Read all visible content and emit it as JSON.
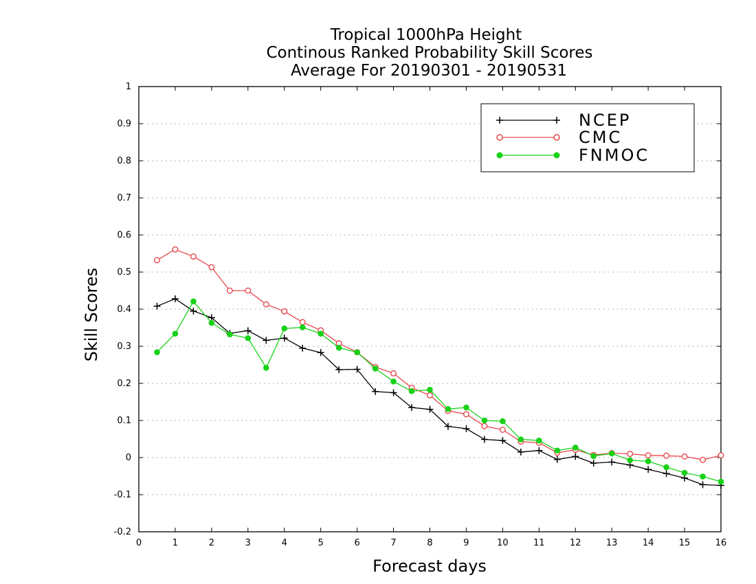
{
  "chart_data": {
    "type": "line",
    "title": [
      "Tropical 1000hPa Height",
      "Continous Ranked Probability Skill Scores",
      "Average For 20190301 - 20190531"
    ],
    "xlabel": "Forecast days",
    "ylabel": "Skill Scores",
    "xlim": [
      0,
      16
    ],
    "ylim": [
      -0.2,
      1
    ],
    "xticks": [
      "0",
      "1",
      "2",
      "3",
      "4",
      "5",
      "6",
      "7",
      "8",
      "9",
      "10",
      "11",
      "12",
      "13",
      "14",
      "15",
      "16"
    ],
    "yticks": [
      "-0.2",
      "-0.1",
      "0",
      "0.1",
      "0.2",
      "0.3",
      "0.4",
      "0.5",
      "0.6",
      "0.7",
      "0.8",
      "0.9",
      "1"
    ],
    "grid": "horizontal dotted",
    "legend_position": "top-right",
    "x": [
      0.5,
      1,
      1.5,
      2,
      2.5,
      3,
      3.5,
      4,
      4.5,
      5,
      5.5,
      6,
      6.5,
      7,
      7.5,
      8,
      8.5,
      9,
      9.5,
      10,
      10.5,
      11,
      11.5,
      12,
      12.5,
      13,
      13.5,
      14,
      14.5,
      15,
      15.5,
      16
    ],
    "series": [
      {
        "name": "NCEP",
        "color": "#000000",
        "marker": "plus",
        "values": [
          0.408,
          0.428,
          0.395,
          0.377,
          0.335,
          0.342,
          0.316,
          0.322,
          0.295,
          0.283,
          0.237,
          0.238,
          0.178,
          0.175,
          0.135,
          0.13,
          0.084,
          0.078,
          0.049,
          0.046,
          0.015,
          0.019,
          -0.005,
          0.003,
          -0.015,
          -0.012,
          -0.02,
          -0.032,
          -0.043,
          -0.055,
          -0.073,
          -0.075
        ]
      },
      {
        "name": "CMC",
        "color": "#e8474e",
        "marker": "open-circle",
        "values": [
          0.532,
          0.561,
          0.542,
          0.513,
          0.45,
          0.45,
          0.413,
          0.394,
          0.365,
          0.343,
          0.308,
          0.284,
          0.244,
          0.227,
          0.188,
          0.168,
          0.126,
          0.117,
          0.085,
          0.075,
          0.043,
          0.04,
          0.013,
          0.021,
          0.007,
          0.012,
          0.01,
          0.006,
          0.005,
          0.003,
          -0.006,
          0.006
        ]
      },
      {
        "name": "FNMOC",
        "color": "#18d118",
        "marker": "filled-circle",
        "values": [
          0.284,
          0.334,
          0.421,
          0.363,
          0.332,
          0.322,
          0.242,
          0.348,
          0.351,
          0.334,
          0.296,
          0.284,
          0.24,
          0.205,
          0.179,
          0.183,
          0.131,
          0.135,
          0.1,
          0.098,
          0.049,
          0.046,
          0.019,
          0.027,
          0.004,
          0.011,
          -0.007,
          -0.01,
          -0.026,
          -0.041,
          -0.051,
          -0.065
        ]
      }
    ]
  }
}
